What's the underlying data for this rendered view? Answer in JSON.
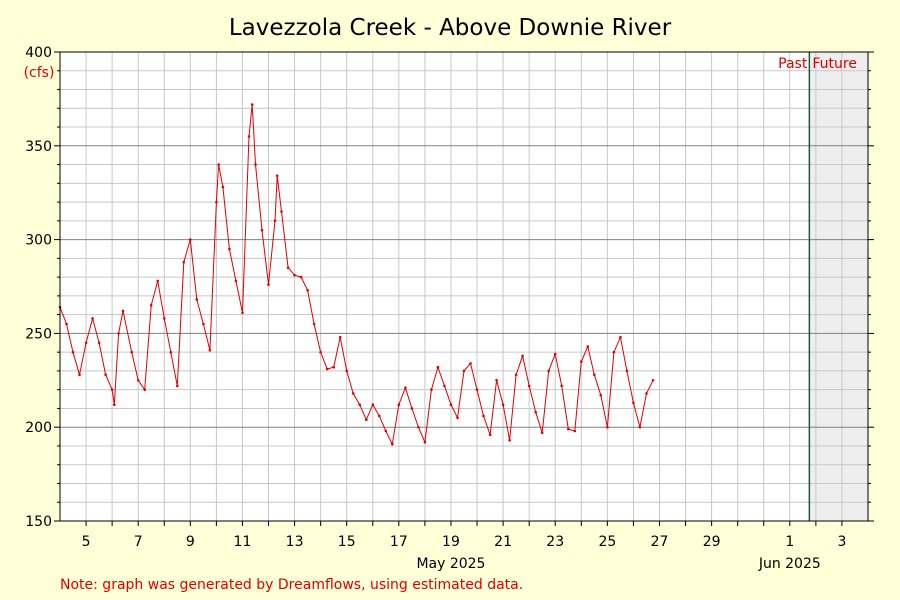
{
  "chart_data": {
    "type": "line",
    "title": "Lavezzola Creek - Above Downie River",
    "ylabel": "(cfs)",
    "ylim": [
      150,
      400
    ],
    "y_ticks": [
      150,
      200,
      250,
      300,
      350,
      400
    ],
    "x_start": "2025-05-04",
    "x_end": "2025-06-04",
    "now": "2025-06-01T18:00",
    "x_tick_labels": [
      {
        "date": "2025-05-05",
        "label": "5"
      },
      {
        "date": "2025-05-07",
        "label": "7"
      },
      {
        "date": "2025-05-09",
        "label": "9"
      },
      {
        "date": "2025-05-11",
        "label": "11"
      },
      {
        "date": "2025-05-13",
        "label": "13"
      },
      {
        "date": "2025-05-15",
        "label": "15"
      },
      {
        "date": "2025-05-17",
        "label": "17"
      },
      {
        "date": "2025-05-19",
        "label": "19"
      },
      {
        "date": "2025-05-21",
        "label": "21"
      },
      {
        "date": "2025-05-23",
        "label": "23"
      },
      {
        "date": "2025-05-25",
        "label": "25"
      },
      {
        "date": "2025-05-27",
        "label": "27"
      },
      {
        "date": "2025-05-29",
        "label": "29"
      },
      {
        "date": "2025-06-01",
        "label": "1"
      },
      {
        "date": "2025-06-03",
        "label": "3"
      }
    ],
    "month_labels": [
      {
        "date": "2025-05-19",
        "label": "May 2025"
      },
      {
        "date": "2025-06-01",
        "label": "Jun 2025"
      }
    ],
    "past_label": "Past",
    "future_label": "Future",
    "grid": true,
    "series": [
      {
        "color": "#e00000",
        "points": [
          [
            "2025-05-04T00:00",
            264
          ],
          [
            "2025-05-04T06:00",
            255
          ],
          [
            "2025-05-04T12:00",
            240
          ],
          [
            "2025-05-04T18:00",
            228
          ],
          [
            "2025-05-05T00:00",
            245
          ],
          [
            "2025-05-05T06:00",
            258
          ],
          [
            "2025-05-05T12:00",
            245
          ],
          [
            "2025-05-05T18:00",
            228
          ],
          [
            "2025-05-06T00:00",
            220
          ],
          [
            "2025-05-06T02:00",
            212
          ],
          [
            "2025-05-06T06:00",
            250
          ],
          [
            "2025-05-06T10:00",
            262
          ],
          [
            "2025-05-06T18:00",
            240
          ],
          [
            "2025-05-07T00:00",
            225
          ],
          [
            "2025-05-07T06:00",
            220
          ],
          [
            "2025-05-07T12:00",
            265
          ],
          [
            "2025-05-07T18:00",
            278
          ],
          [
            "2025-05-08T00:00",
            258
          ],
          [
            "2025-05-08T06:00",
            240
          ],
          [
            "2025-05-08T12:00",
            222
          ],
          [
            "2025-05-08T18:00",
            288
          ],
          [
            "2025-05-09T00:00",
            300
          ],
          [
            "2025-05-09T06:00",
            268
          ],
          [
            "2025-05-09T12:00",
            255
          ],
          [
            "2025-05-09T18:00",
            241
          ],
          [
            "2025-05-10T00:00",
            320
          ],
          [
            "2025-05-10T02:00",
            340
          ],
          [
            "2025-05-10T06:00",
            328
          ],
          [
            "2025-05-10T12:00",
            295
          ],
          [
            "2025-05-10T18:00",
            278
          ],
          [
            "2025-05-11T00:00",
            261
          ],
          [
            "2025-05-11T06:00",
            355
          ],
          [
            "2025-05-11T09:00",
            372
          ],
          [
            "2025-05-11T12:00",
            340
          ],
          [
            "2025-05-11T18:00",
            305
          ],
          [
            "2025-05-12T00:00",
            276
          ],
          [
            "2025-05-12T06:00",
            310
          ],
          [
            "2025-05-12T08:00",
            334
          ],
          [
            "2025-05-12T12:00",
            315
          ],
          [
            "2025-05-12T18:00",
            285
          ],
          [
            "2025-05-13T00:00",
            281
          ],
          [
            "2025-05-13T06:00",
            280
          ],
          [
            "2025-05-13T12:00",
            273
          ],
          [
            "2025-05-13T18:00",
            255
          ],
          [
            "2025-05-14T00:00",
            240
          ],
          [
            "2025-05-14T06:00",
            231
          ],
          [
            "2025-05-14T12:00",
            232
          ],
          [
            "2025-05-14T18:00",
            248
          ],
          [
            "2025-05-15T00:00",
            230
          ],
          [
            "2025-05-15T06:00",
            218
          ],
          [
            "2025-05-15T12:00",
            212
          ],
          [
            "2025-05-15T18:00",
            204
          ],
          [
            "2025-05-16T00:00",
            212
          ],
          [
            "2025-05-16T06:00",
            206
          ],
          [
            "2025-05-16T12:00",
            198
          ],
          [
            "2025-05-16T18:00",
            191
          ],
          [
            "2025-05-17T00:00",
            212
          ],
          [
            "2025-05-17T06:00",
            221
          ],
          [
            "2025-05-17T12:00",
            210
          ],
          [
            "2025-05-17T18:00",
            200
          ],
          [
            "2025-05-18T00:00",
            192
          ],
          [
            "2025-05-18T06:00",
            220
          ],
          [
            "2025-05-18T12:00",
            232
          ],
          [
            "2025-05-18T18:00",
            222
          ],
          [
            "2025-05-19T00:00",
            212
          ],
          [
            "2025-05-19T06:00",
            205
          ],
          [
            "2025-05-19T12:00",
            230
          ],
          [
            "2025-05-19T18:00",
            234
          ],
          [
            "2025-05-20T00:00",
            220
          ],
          [
            "2025-05-20T06:00",
            206
          ],
          [
            "2025-05-20T12:00",
            196
          ],
          [
            "2025-05-20T18:00",
            225
          ],
          [
            "2025-05-21T00:00",
            212
          ],
          [
            "2025-05-21T06:00",
            193
          ],
          [
            "2025-05-21T12:00",
            228
          ],
          [
            "2025-05-21T18:00",
            238
          ],
          [
            "2025-05-22T00:00",
            222
          ],
          [
            "2025-05-22T06:00",
            208
          ],
          [
            "2025-05-22T12:00",
            197
          ],
          [
            "2025-05-22T18:00",
            230
          ],
          [
            "2025-05-23T00:00",
            239
          ],
          [
            "2025-05-23T06:00",
            222
          ],
          [
            "2025-05-23T12:00",
            199
          ],
          [
            "2025-05-23T18:00",
            198
          ],
          [
            "2025-05-24T00:00",
            235
          ],
          [
            "2025-05-24T06:00",
            243
          ],
          [
            "2025-05-24T12:00",
            228
          ],
          [
            "2025-05-24T18:00",
            217
          ],
          [
            "2025-05-25T00:00",
            200
          ],
          [
            "2025-05-25T06:00",
            240
          ],
          [
            "2025-05-25T12:00",
            248
          ],
          [
            "2025-05-25T18:00",
            230
          ],
          [
            "2025-05-26T00:00",
            213
          ],
          [
            "2025-05-26T06:00",
            200
          ],
          [
            "2025-05-26T12:00",
            218
          ],
          [
            "2025-05-26T18:00",
            225
          ]
        ]
      }
    ]
  },
  "note": "Note: graph was generated by Dreamflows, using estimated data."
}
